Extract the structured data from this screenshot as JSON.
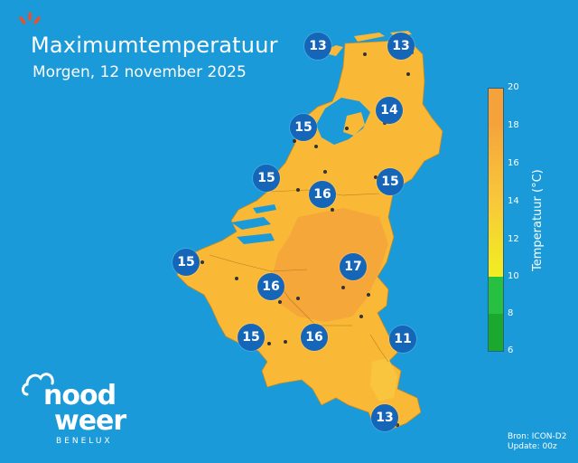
{
  "header": {
    "title": "Maximumtemperatuur",
    "subtitle": "Morgen, 12 november 2025"
  },
  "legend": {
    "label": "Temperatuur (°C)",
    "ticks": [
      "20",
      "18",
      "16",
      "14",
      "12",
      "10",
      "8",
      "6"
    ],
    "colors": {
      "warm": "#f5a23a",
      "mid": "#f8c13a",
      "yellow": "#f2ee22",
      "green": "#28c040",
      "dark_green": "#1aa82e"
    }
  },
  "map": {
    "sea_color": "#1a9ad9",
    "land_color": "#f9b936",
    "warm_color": "#f5a53b",
    "station_values": [
      "13",
      "13",
      "14",
      "15",
      "15",
      "15",
      "16",
      "15",
      "17",
      "16",
      "15",
      "16",
      "11",
      "13"
    ]
  },
  "logo": {
    "line1": "nood",
    "line2": "weer",
    "sub": "BENELUX"
  },
  "source": {
    "line1": "Bron: ICON-D2",
    "line2": "Update: 00z"
  }
}
